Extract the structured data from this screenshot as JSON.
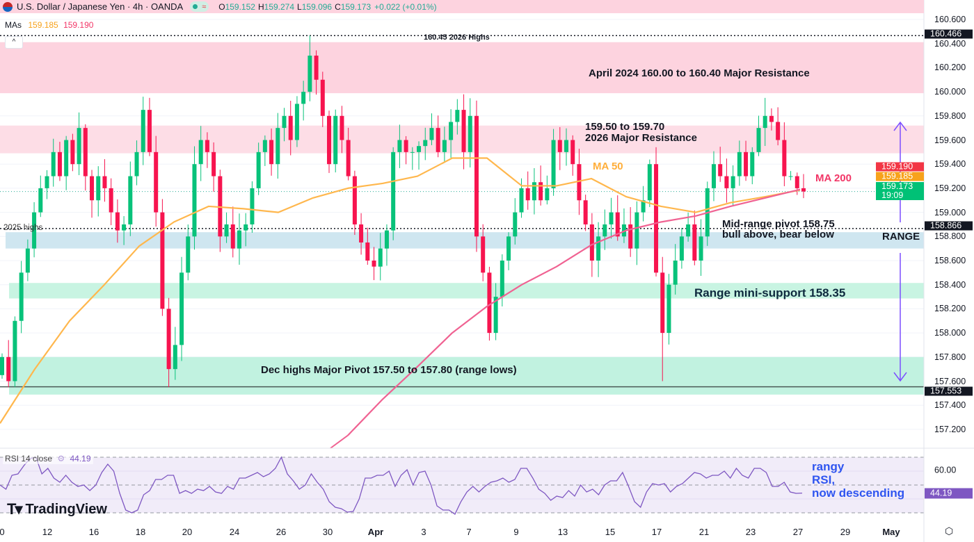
{
  "header": {
    "title": "U.S. Dollar / Japanese Yen · 4h · OANDA",
    "open_label": "O",
    "open": "159.152",
    "high_label": "H",
    "high": "159.274",
    "low_label": "L",
    "low": "159.096",
    "close_label": "C",
    "close": "159.173",
    "change": "+0.022 (+0.01%)",
    "status_icon": "market-open-dot",
    "wave_icon": "≈"
  },
  "mas": {
    "label": "MAs",
    "ma50": "159.185",
    "ma200": "159.190"
  },
  "price_axis": {
    "ticks": [
      "160.600",
      "160.400",
      "160.200",
      "160.000",
      "159.800",
      "159.600",
      "159.400",
      "159.200",
      "159.000",
      "158.800",
      "158.600",
      "158.400",
      "158.200",
      "158.000",
      "157.800",
      "157.600",
      "157.400",
      "157.200"
    ],
    "labels": [
      {
        "text": "160.466",
        "color": "#131722"
      },
      {
        "text": "159.190",
        "color": "#f23645"
      },
      {
        "text": "159.185",
        "color": "#f7a21b"
      },
      {
        "text": "159.173",
        "sub": "19:09",
        "color": "#00c176"
      },
      {
        "text": "158.866",
        "color": "#131722"
      },
      {
        "text": "157.553",
        "color": "#131722"
      }
    ]
  },
  "time_axis": [
    "0",
    "12",
    "16",
    "18",
    "20",
    "24",
    "26",
    "30",
    "Apr",
    "3",
    "7",
    "9",
    "13",
    "15",
    "17",
    "21",
    "23",
    "27",
    "29",
    "May"
  ],
  "annotations": {
    "highs_2026": "160.45 2026 Highs",
    "april_resistance": "April 2024 160.00 to 160.40 Major Resistance",
    "res_2026_line1": "159.50 to 159.70",
    "res_2026_line2": "2026 Major Resistance",
    "ma50": "MA 50",
    "ma200": "MA 200",
    "pivot_line1": "Mid-range pivot 158.75",
    "pivot_line2": "bull above, bear below",
    "range": "RANGE",
    "mini_support": "Range mini-support 158.35",
    "dec_highs": "Dec highs Major Pivot 157.50 to 157.80 (range lows)",
    "highs_2025": "2025 highs",
    "rsi_note_1": "rangy",
    "rsi_note_2": "RSI,",
    "rsi_note_3": "now descending"
  },
  "rsi": {
    "label": "RSI 14 close",
    "value": "44.19",
    "ticks": [
      "60.00"
    ],
    "color": "#7e57c2"
  },
  "logo": "TradingView",
  "colors": {
    "up": "#089981",
    "down": "#f23645",
    "ma50": "#ffb74d",
    "ma200": "#f06292",
    "range_arrow": "#7b4dff",
    "rsi_note": "#2f55f0"
  },
  "chart_data": {
    "type": "candlestick",
    "symbol": "USDJPY",
    "timeframe": "4h",
    "ylim": [
      157.1,
      160.7
    ],
    "closes": [
      157.8,
      157.6,
      158.1,
      158.5,
      158.7,
      159.0,
      159.2,
      159.3,
      159.5,
      159.3,
      159.6,
      159.4,
      159.7,
      159.3,
      159.1,
      159.3,
      159.2,
      159.0,
      158.85,
      158.9,
      159.3,
      159.5,
      159.85,
      159.5,
      159.0,
      158.2,
      157.7,
      157.9,
      158.5,
      158.8,
      159.4,
      159.6,
      159.5,
      159.3,
      158.8,
      158.9,
      158.7,
      158.85,
      158.9,
      159.2,
      159.5,
      159.6,
      159.4,
      159.7,
      159.8,
      159.6,
      159.9,
      160.0,
      160.3,
      160.1,
      159.8,
      159.4,
      159.8,
      159.6,
      159.3,
      158.9,
      158.75,
      158.6,
      158.55,
      158.7,
      158.85,
      159.5,
      159.6,
      159.5,
      159.5,
      159.55,
      159.6,
      159.7,
      159.5,
      159.6,
      159.75,
      159.85,
      159.5,
      159.8,
      158.8,
      158.5,
      158.0,
      158.3,
      158.6,
      158.8,
      159.0,
      159.2,
      159.1,
      159.25,
      159.1,
      159.2,
      159.6,
      159.5,
      159.6,
      159.4,
      159.1,
      158.9,
      158.6,
      158.8,
      158.9,
      159.0,
      158.8,
      158.9,
      158.7,
      159.0,
      159.1,
      159.4,
      158.5,
      158.0,
      158.4,
      158.6,
      158.8,
      158.9,
      158.6,
      158.8,
      159.2,
      159.4,
      159.3,
      159.2,
      159.3,
      159.5,
      159.3,
      159.5,
      159.7,
      159.8,
      159.75,
      159.6,
      159.3,
      159.3,
      159.2,
      159.173
    ],
    "ma50": [
      157.25,
      157.7,
      158.1,
      158.4,
      158.72,
      158.92,
      159.05,
      159.03,
      159.0,
      159.12,
      159.2,
      159.24,
      159.3,
      159.45,
      159.45,
      159.22,
      159.22,
      159.28,
      159.13,
      159.05,
      159.0,
      159.08,
      159.13,
      159.185
    ],
    "ma200": [
      null,
      null,
      null,
      null,
      null,
      null,
      null,
      null,
      null,
      null,
      157.15,
      157.45,
      157.72,
      158.0,
      158.22,
      158.4,
      158.55,
      158.73,
      158.85,
      158.92,
      158.97,
      159.05,
      159.12,
      159.19
    ],
    "rsi": [
      50,
      47,
      57,
      58,
      64,
      69,
      70,
      58,
      62,
      55,
      52,
      57,
      52,
      49,
      50,
      46,
      50,
      59,
      65,
      60,
      44,
      32,
      30,
      32,
      43,
      46,
      54,
      54,
      57,
      57,
      44,
      46,
      44,
      47,
      46,
      49,
      45,
      44,
      49,
      47,
      55,
      55,
      57,
      59,
      56,
      58,
      62,
      70,
      58,
      53,
      47,
      50,
      58,
      52,
      47,
      38,
      34,
      33,
      30.5,
      31,
      40,
      55,
      55,
      57,
      57,
      60,
      49,
      57,
      61,
      50,
      59,
      60,
      50,
      35,
      32,
      32,
      29,
      38,
      45,
      49,
      45,
      49,
      52,
      53,
      55,
      52,
      54,
      62,
      62,
      55,
      47,
      44,
      39,
      42,
      41,
      46,
      42,
      50,
      45,
      47,
      43,
      50,
      53,
      53,
      59,
      49,
      38,
      34,
      45,
      51,
      50,
      51,
      45,
      49,
      51,
      55,
      59,
      58,
      55,
      57,
      57,
      60,
      55,
      62,
      57,
      55,
      62,
      62,
      59,
      49,
      49,
      52,
      45,
      44,
      44.19
    ],
    "levels": {
      "highs_2026": 160.466,
      "highs_2025": 158.866,
      "range_low_line": 157.553,
      "last": 159.173
    },
    "zones": [
      {
        "name": "April 2024 Major Resistance",
        "from": 160.0,
        "to": 160.4
      },
      {
        "name": "2026 Major Resistance",
        "from": 159.5,
        "to": 159.7
      },
      {
        "name": "Mid-range pivot",
        "from": 158.7,
        "to": 158.87
      },
      {
        "name": "Range mini-support",
        "from": 158.28,
        "to": 158.42
      },
      {
        "name": "Dec highs Major Pivot",
        "from": 157.5,
        "to": 157.8
      }
    ]
  }
}
